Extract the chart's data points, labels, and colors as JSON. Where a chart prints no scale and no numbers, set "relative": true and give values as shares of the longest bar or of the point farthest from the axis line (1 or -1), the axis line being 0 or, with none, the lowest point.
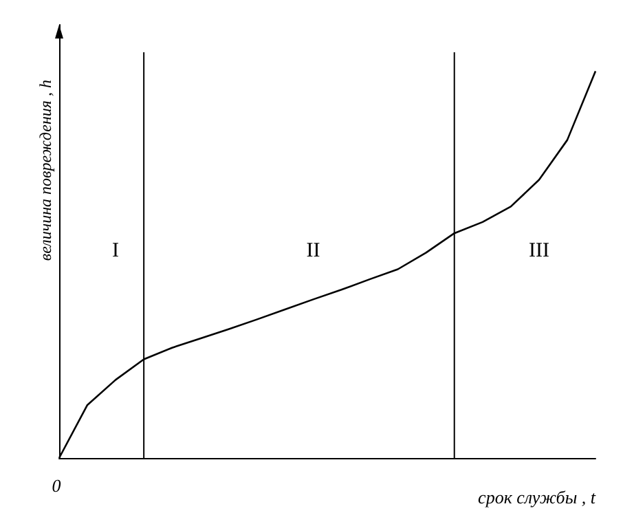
{
  "chart_data": {
    "type": "line",
    "relative": true,
    "xlabel": "срок службы , t",
    "ylabel": "величина повреждения , h",
    "grid": false,
    "marker": "none",
    "line_style": "solid",
    "categories": [
      null,
      null,
      null,
      null,
      null,
      null,
      null,
      null,
      null,
      null,
      null,
      null,
      null,
      null,
      null,
      null,
      null,
      null,
      null,
      null
    ],
    "series": [
      {
        "color": "#000000",
        "values": [
          0,
          0.137,
          0.202,
          0.255,
          0.285,
          0.309,
          0.333,
          0.358,
          0.384,
          0.41,
          0.435,
          0.462,
          0.488,
          0.531,
          0.581,
          0.61,
          0.65,
          0.719,
          0.822,
          1
        ]
      }
    ],
    "annotations": [
      "0",
      "I",
      "II",
      "III"
    ]
  }
}
